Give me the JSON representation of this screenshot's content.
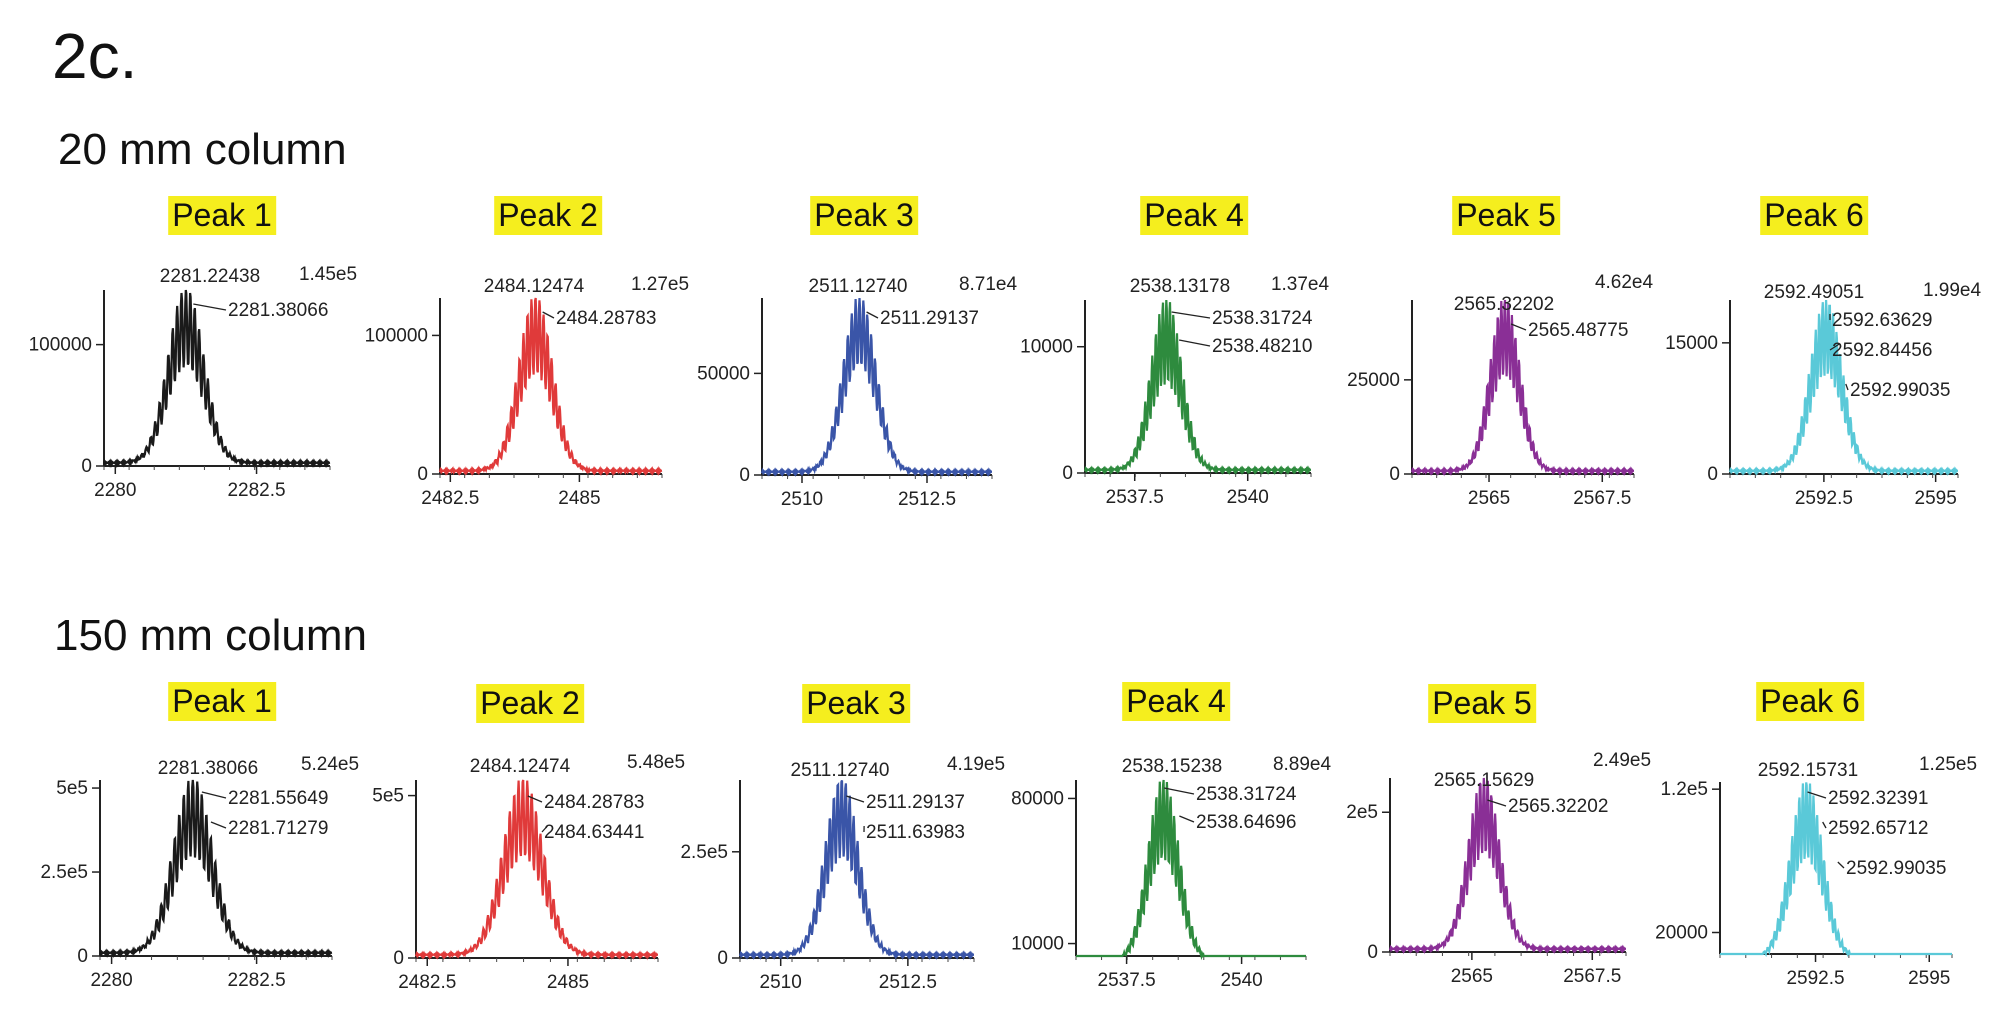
{
  "figure": {
    "title": "2c.",
    "rows": [
      {
        "label": "20 mm column"
      },
      {
        "label": "150 mm column"
      }
    ]
  },
  "colors": {
    "peak1": "#1a1a1a",
    "peak2": "#e03a3a",
    "peak3": "#3a55a8",
    "peak4": "#2e8b3e",
    "peak5": "#8a2f96",
    "peak6": "#5ac9d8",
    "label_highlight": "#f5ee1e"
  },
  "chart_data": [
    {
      "type": "line",
      "row": 0,
      "title": "Peak 1",
      "color_key": "peak1",
      "max_label": "1.45e5",
      "xlim": [
        2279.8,
        2283.8
      ],
      "x_ticks": [
        2280,
        2282.5
      ],
      "x_tick_labels": [
        "2280",
        "2282.5"
      ],
      "ylim": [
        0,
        145000
      ],
      "y_ticks": [
        0,
        100000
      ],
      "y_tick_labels": [
        "0",
        "100000"
      ],
      "peak_center": 2281.25,
      "peak_intensity": 145000,
      "peak_width": 0.58,
      "spacing": 0.078,
      "mod_depth": 0.45,
      "peak_annotations": [
        {
          "text": "2281.22438",
          "x": 2281.22438
        },
        {
          "text": "2281.38066",
          "x": 2281.38066
        }
      ]
    },
    {
      "type": "line",
      "row": 0,
      "title": "Peak 2",
      "color_key": "peak2",
      "max_label": "1.27e5",
      "xlim": [
        2482.3,
        2486.6
      ],
      "x_ticks": [
        2482.5,
        2485
      ],
      "x_tick_labels": [
        "2482.5",
        "2485"
      ],
      "ylim": [
        0,
        127000
      ],
      "y_ticks": [
        0,
        100000
      ],
      "y_tick_labels": [
        "0",
        "100000"
      ],
      "peak_center": 2484.15,
      "peak_intensity": 127000,
      "peak_width": 0.6,
      "spacing": 0.078,
      "mod_depth": 0.45,
      "peak_annotations": [
        {
          "text": "2484.12474",
          "x": 2484.12474
        },
        {
          "text": "2484.28783",
          "x": 2484.28783
        }
      ]
    },
    {
      "type": "line",
      "row": 0,
      "title": "Peak 3",
      "color_key": "peak3",
      "max_label": "8.71e4",
      "xlim": [
        2509.2,
        2513.8
      ],
      "x_ticks": [
        2510,
        2512.5
      ],
      "x_tick_labels": [
        "2510",
        "2512.5"
      ],
      "ylim": [
        0,
        87100
      ],
      "y_ticks": [
        0,
        50000
      ],
      "y_tick_labels": [
        "0",
        "50000"
      ],
      "peak_center": 2511.15,
      "peak_intensity": 87100,
      "peak_width": 0.6,
      "spacing": 0.078,
      "mod_depth": 0.4,
      "peak_annotations": [
        {
          "text": "2511.12740",
          "x": 2511.1274
        },
        {
          "text": "2511.29137",
          "x": 2511.29137
        }
      ]
    },
    {
      "type": "line",
      "row": 0,
      "title": "Peak 4",
      "color_key": "peak4",
      "max_label": "1.37e4",
      "xlim": [
        2536.4,
        2541.4
      ],
      "x_ticks": [
        2537.5,
        2540
      ],
      "x_tick_labels": [
        "2537.5",
        "2540"
      ],
      "ylim": [
        0,
        13700
      ],
      "y_ticks": [
        0,
        10000
      ],
      "y_tick_labels": [
        "0",
        "10000"
      ],
      "peak_center": 2538.2,
      "peak_intensity": 13700,
      "peak_width": 0.62,
      "spacing": 0.078,
      "mod_depth": 0.5,
      "peak_annotations": [
        {
          "text": "2538.13178",
          "x": 2538.13178
        },
        {
          "text": "2538.31724",
          "x": 2538.31724
        },
        {
          "text": "2538.48210",
          "x": 2538.4821
        }
      ]
    },
    {
      "type": "line",
      "row": 0,
      "title": "Peak 5",
      "color_key": "peak5",
      "max_label": "4.62e4",
      "xlim": [
        2563.3,
        2568.2
      ],
      "x_ticks": [
        2565,
        2567.5
      ],
      "x_tick_labels": [
        "2565",
        "2567.5"
      ],
      "ylim": [
        0,
        46200
      ],
      "y_ticks": [
        0,
        25000
      ],
      "y_tick_labels": [
        "0",
        "25000"
      ],
      "peak_center": 2565.35,
      "peak_intensity": 46200,
      "peak_width": 0.6,
      "spacing": 0.078,
      "mod_depth": 0.45,
      "peak_annotations": [
        {
          "text": "2565.32202",
          "x": 2565.32202
        },
        {
          "text": "2565.48775",
          "x": 2565.48775
        }
      ]
    },
    {
      "type": "line",
      "row": 0,
      "title": "Peak 6",
      "color_key": "peak6",
      "max_label": "1.99e4",
      "xlim": [
        2590.4,
        2595.5
      ],
      "x_ticks": [
        2592.5,
        2595
      ],
      "x_tick_labels": [
        "2592.5",
        "2595"
      ],
      "ylim": [
        0,
        19900
      ],
      "y_ticks": [
        0,
        15000
      ],
      "y_tick_labels": [
        "0",
        "15000"
      ],
      "peak_center": 2592.55,
      "peak_intensity": 19900,
      "peak_width": 0.65,
      "spacing": 0.078,
      "mod_depth": 0.45,
      "peak_annotations": [
        {
          "text": "2592.49051",
          "x": 2592.49051
        },
        {
          "text": "2592.63629",
          "x": 2592.63629
        },
        {
          "text": "2592.84456",
          "x": 2592.84456
        },
        {
          "text": "2592.99035",
          "x": 2592.99035
        }
      ]
    },
    {
      "type": "line",
      "row": 1,
      "title": "Peak 1",
      "color_key": "peak1",
      "max_label": "5.24e5",
      "xlim": [
        2279.8,
        2283.8
      ],
      "x_ticks": [
        2280,
        2282.5
      ],
      "x_tick_labels": [
        "2280",
        "2282.5"
      ],
      "ylim": [
        0,
        524000
      ],
      "y_ticks": [
        0,
        250000,
        500000
      ],
      "y_tick_labels": [
        "0",
        "2.5e5",
        "5e5"
      ],
      "peak_center": 2281.4,
      "peak_intensity": 524000,
      "peak_width": 0.62,
      "spacing": 0.078,
      "mod_depth": 0.45,
      "peak_annotations": [
        {
          "text": "2281.38066",
          "x": 2281.38066
        },
        {
          "text": "2281.55649",
          "x": 2281.55649
        },
        {
          "text": "2281.71279",
          "x": 2281.71279
        }
      ]
    },
    {
      "type": "line",
      "row": 1,
      "title": "Peak 2",
      "color_key": "peak2",
      "max_label": "5.48e5",
      "xlim": [
        2482.3,
        2486.6
      ],
      "x_ticks": [
        2482.5,
        2485
      ],
      "x_tick_labels": [
        "2482.5",
        "2485"
      ],
      "ylim": [
        0,
        548000
      ],
      "y_ticks": [
        0,
        500000
      ],
      "y_tick_labels": [
        "0",
        "5e5"
      ],
      "peak_center": 2484.2,
      "peak_intensity": 548000,
      "peak_width": 0.65,
      "spacing": 0.078,
      "mod_depth": 0.45,
      "peak_annotations": [
        {
          "text": "2484.12474",
          "x": 2484.12474
        },
        {
          "text": "2484.28783",
          "x": 2484.28783
        },
        {
          "text": "2484.63441",
          "x": 2484.63441
        }
      ]
    },
    {
      "type": "line",
      "row": 1,
      "title": "Peak 3",
      "color_key": "peak3",
      "max_label": "4.19e5",
      "xlim": [
        2509.2,
        2513.8
      ],
      "x_ticks": [
        2510,
        2512.5
      ],
      "x_tick_labels": [
        "2510",
        "2512.5"
      ],
      "ylim": [
        0,
        419000
      ],
      "y_ticks": [
        0,
        250000
      ],
      "y_tick_labels": [
        "0",
        "2.5e5"
      ],
      "peak_center": 2511.2,
      "peak_intensity": 419000,
      "peak_width": 0.6,
      "spacing": 0.078,
      "mod_depth": 0.45,
      "peak_annotations": [
        {
          "text": "2511.12740",
          "x": 2511.1274
        },
        {
          "text": "2511.29137",
          "x": 2511.29137
        },
        {
          "text": "2511.63983",
          "x": 2511.63983
        }
      ]
    },
    {
      "type": "line",
      "row": 1,
      "title": "Peak 4",
      "color_key": "peak4",
      "max_label": "8.89e4",
      "xlim": [
        2536.4,
        2541.4
      ],
      "x_ticks": [
        2537.5,
        2540
      ],
      "x_tick_labels": [
        "2537.5",
        "2540"
      ],
      "ylim": [
        4000,
        88900
      ],
      "y_ticks": [
        10000,
        80000
      ],
      "y_tick_labels": [
        "10000",
        "80000"
      ],
      "peak_center": 2538.3,
      "peak_intensity": 88900,
      "peak_width": 0.62,
      "spacing": 0.078,
      "mod_depth": 0.45,
      "peak_annotations": [
        {
          "text": "2538.15238",
          "x": 2538.15238
        },
        {
          "text": "2538.31724",
          "x": 2538.31724
        },
        {
          "text": "2538.64696",
          "x": 2538.64696
        }
      ]
    },
    {
      "type": "line",
      "row": 1,
      "title": "Peak 5",
      "color_key": "peak5",
      "max_label": "2.49e5",
      "xlim": [
        2563.3,
        2568.2
      ],
      "x_ticks": [
        2565,
        2567.5
      ],
      "x_tick_labels": [
        "2565",
        "2567.5"
      ],
      "ylim": [
        0,
        249000
      ],
      "y_ticks": [
        0,
        200000
      ],
      "y_tick_labels": [
        "0",
        "2e5"
      ],
      "peak_center": 2565.25,
      "peak_intensity": 249000,
      "peak_width": 0.6,
      "spacing": 0.078,
      "mod_depth": 0.45,
      "peak_annotations": [
        {
          "text": "2565.15629",
          "x": 2565.15629
        },
        {
          "text": "2565.32202",
          "x": 2565.32202
        }
      ]
    },
    {
      "type": "line",
      "row": 1,
      "title": "Peak 6",
      "color_key": "peak6",
      "max_label": "1.25e5",
      "xlim": [
        2590.4,
        2595.5
      ],
      "x_ticks": [
        2592.5,
        2595
      ],
      "x_tick_labels": [
        "2592.5",
        "2595"
      ],
      "ylim": [
        5000,
        125000
      ],
      "y_ticks": [
        20000,
        120000
      ],
      "y_tick_labels": [
        "20000",
        "1.2e5"
      ],
      "peak_center": 2592.3,
      "peak_intensity": 125000,
      "peak_width": 0.65,
      "spacing": 0.078,
      "mod_depth": 0.45,
      "peak_annotations": [
        {
          "text": "2592.15731",
          "x": 2592.15731
        },
        {
          "text": "2592.32391",
          "x": 2592.32391
        },
        {
          "text": "2592.65712",
          "x": 2592.65712
        },
        {
          "text": "2592.99035",
          "x": 2592.99035
        }
      ]
    }
  ]
}
